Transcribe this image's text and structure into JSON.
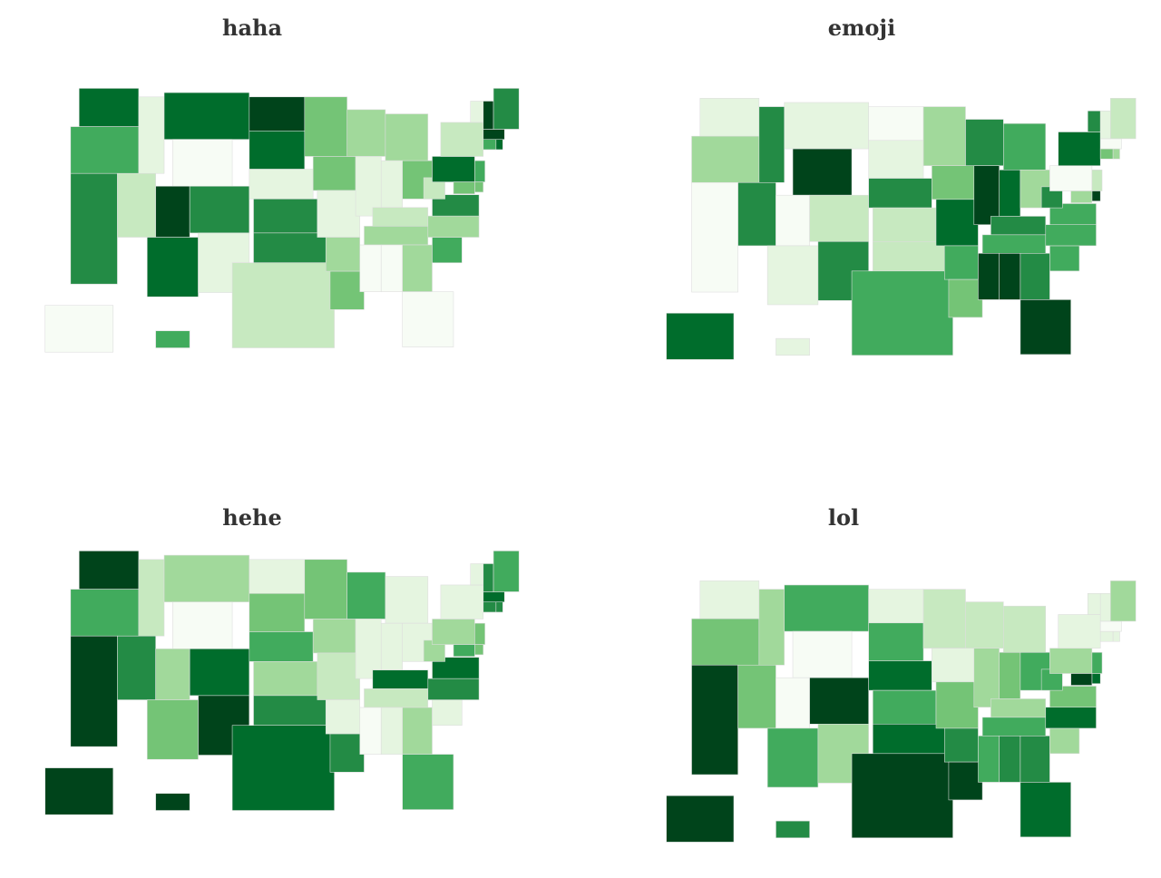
{
  "palette": [
    "#f7fcf5",
    "#e5f5e0",
    "#c7e9c0",
    "#a1d99b",
    "#74c476",
    "#41ab5d",
    "#238b45",
    "#006d2c",
    "#00441b"
  ],
  "maps": [
    {
      "title": "haha",
      "levels": {
        "WA": 7,
        "OR": 5,
        "CA": 6,
        "NV": 2,
        "ID": 1,
        "MT": 7,
        "WY": 0,
        "UT": 8,
        "AZ": 7,
        "CO": 6,
        "NM": 1,
        "ND": 8,
        "SD": 7,
        "NE": 1,
        "KS": 6,
        "OK": 6,
        "TX": 2,
        "MN": 4,
        "IA": 4,
        "MO": 1,
        "AR": 3,
        "LA": 4,
        "WI": 3,
        "IL": 1,
        "MI": 3,
        "IN": 1,
        "OH": 4,
        "KY": 2,
        "TN": 3,
        "MS": 0,
        "AL": 0,
        "GA": 3,
        "FL": 0,
        "SC": 5,
        "NC": 3,
        "VA": 6,
        "WV": 2,
        "PA": 7,
        "NY": 2,
        "NJ": 5,
        "DE": 4,
        "MD": 4,
        "CT": 5,
        "RI": 7,
        "MA": 8,
        "VT": 1,
        "NH": 8,
        "ME": 6,
        "AK": 0,
        "HI": 5
      }
    },
    {
      "title": "emoji",
      "levels": {
        "WA": 1,
        "OR": 3,
        "CA": 0,
        "NV": 6,
        "ID": 6,
        "MT": 1,
        "WY": 8,
        "UT": 0,
        "AZ": 1,
        "CO": 2,
        "NM": 6,
        "ND": 0,
        "SD": 1,
        "NE": 6,
        "KS": 2,
        "OK": 2,
        "TX": 5,
        "MN": 3,
        "IA": 4,
        "MO": 7,
        "AR": 5,
        "LA": 4,
        "WI": 6,
        "IL": 8,
        "MI": 5,
        "IN": 7,
        "OH": 3,
        "KY": 6,
        "TN": 5,
        "MS": 8,
        "AL": 8,
        "GA": 6,
        "FL": 8,
        "SC": 5,
        "NC": 5,
        "VA": 5,
        "WV": 6,
        "PA": 0,
        "NY": 7,
        "NJ": 2,
        "DE": 8,
        "MD": 3,
        "CT": 4,
        "RI": 3,
        "MA": 0,
        "VT": 6,
        "NH": 1,
        "ME": 2,
        "AK": 7,
        "HI": 1
      }
    },
    {
      "title": "hehe",
      "levels": {
        "WA": 8,
        "OR": 5,
        "CA": 8,
        "NV": 6,
        "ID": 2,
        "MT": 3,
        "WY": 0,
        "UT": 3,
        "AZ": 4,
        "CO": 7,
        "NM": 8,
        "ND": 1,
        "SD": 4,
        "NE": 5,
        "KS": 3,
        "OK": 6,
        "TX": 7,
        "MN": 4,
        "IA": 3,
        "MO": 2,
        "AR": 1,
        "LA": 6,
        "WI": 5,
        "IL": 1,
        "MI": 1,
        "IN": 1,
        "OH": 1,
        "KY": 7,
        "TN": 2,
        "MS": 0,
        "AL": 1,
        "GA": 3,
        "FL": 5,
        "SC": 1,
        "NC": 6,
        "VA": 7,
        "WV": 3,
        "PA": 3,
        "NY": 1,
        "NJ": 4,
        "DE": 4,
        "MD": 5,
        "CT": 6,
        "RI": 6,
        "MA": 7,
        "VT": 1,
        "NH": 6,
        "ME": 5,
        "AK": 8,
        "HI": 8
      }
    },
    {
      "title": "lol",
      "levels": {
        "WA": 1,
        "OR": 4,
        "CA": 8,
        "NV": 4,
        "ID": 3,
        "MT": 5,
        "WY": 0,
        "UT": 0,
        "AZ": 5,
        "CO": 8,
        "NM": 3,
        "ND": 1,
        "SD": 5,
        "NE": 7,
        "KS": 5,
        "OK": 7,
        "TX": 8,
        "MN": 2,
        "IA": 1,
        "MO": 4,
        "AR": 6,
        "LA": 8,
        "WI": 2,
        "IL": 3,
        "MI": 2,
        "IN": 4,
        "OH": 5,
        "KY": 3,
        "TN": 5,
        "MS": 5,
        "AL": 6,
        "GA": 6,
        "FL": 7,
        "SC": 3,
        "NC": 7,
        "VA": 4,
        "WV": 5,
        "PA": 3,
        "NY": 1,
        "NJ": 5,
        "DE": 7,
        "MD": 8,
        "CT": 1,
        "RI": 1,
        "MA": 0,
        "VT": 1,
        "NH": 1,
        "ME": 3,
        "AK": 8,
        "HI": 6
      }
    }
  ]
}
